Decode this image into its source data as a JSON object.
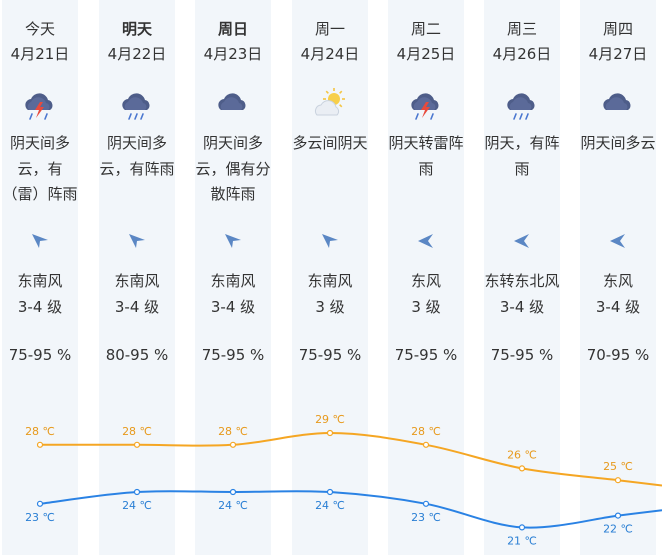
{
  "days": [
    {
      "day": "今天",
      "date": "4月21日",
      "icon": "thunder-rain-cloud-icon",
      "desc": "阴天间多云，有（雷）阵雨",
      "wind_dir": "southeast-arrow-icon",
      "wind": "东南风",
      "level": "3-4 级",
      "humidity": "75-95 %",
      "high": "28 ℃",
      "low": "23 ℃"
    },
    {
      "day": "明天",
      "date": "4月22日",
      "icon": "rain-cloud-icon",
      "desc": "阴天间多云，有阵雨",
      "wind_dir": "southeast-arrow-icon",
      "wind": "东南风",
      "level": "3-4 级",
      "humidity": "80-95 %",
      "high": "28 ℃",
      "low": "24 ℃"
    },
    {
      "day": "周日",
      "date": "4月23日",
      "icon": "overcast-cloud-icon",
      "desc": "阴天间多云，偶有分散阵雨",
      "wind_dir": "southeast-arrow-icon",
      "wind": "东南风",
      "level": "3-4 级",
      "humidity": "75-95 %",
      "high": "28 ℃",
      "low": "24 ℃"
    },
    {
      "day": "周一",
      "date": "4月24日",
      "icon": "partly-cloudy-sun-icon",
      "desc": "多云间阴天",
      "wind_dir": "southeast-arrow-icon",
      "wind": "东南风",
      "level": "3 级",
      "humidity": "75-95 %",
      "high": "29 ℃",
      "low": "24 ℃"
    },
    {
      "day": "周二",
      "date": "4月25日",
      "icon": "thunder-rain-cloud-icon",
      "desc": "阴天转雷阵雨",
      "wind_dir": "east-arrow-icon",
      "wind": "东风",
      "level": "3 级",
      "humidity": "75-95 %",
      "high": "28 ℃",
      "low": "23 ℃"
    },
    {
      "day": "周三",
      "date": "4月26日",
      "icon": "rain-cloud-icon",
      "desc": "阴天，有阵雨",
      "wind_dir": "east-arrow-icon",
      "wind": "东转东北风",
      "level": "3-4 级",
      "humidity": "75-95 %",
      "high": "26 ℃",
      "low": "21 ℃"
    },
    {
      "day": "周四",
      "date": "4月27日",
      "icon": "overcast-cloud-icon",
      "desc": "阴天间多云",
      "wind_dir": "east-arrow-icon",
      "wind": "东风",
      "level": "3-4 级",
      "humidity": "70-95 %",
      "high": "25 ℃",
      "low": "22 ℃"
    }
  ],
  "temps": {
    "high": [
      28,
      28,
      28,
      29,
      28,
      26,
      25
    ],
    "low": [
      23,
      24,
      24,
      24,
      23,
      21,
      22
    ]
  },
  "colors": {
    "high": "#f5a623",
    "low": "#2a82e4",
    "high_text": "#e79a1d",
    "low_text": "#2a7fd4",
    "column_bg": "#f2f6fa"
  }
}
